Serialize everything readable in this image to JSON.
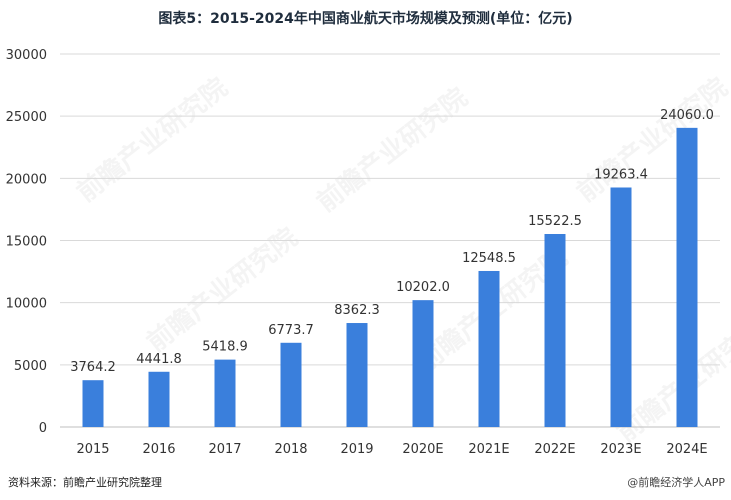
{
  "title": "图表5：2015-2024年中国商业航天市场规模及预测(单位：亿元)",
  "source": "资料来源：前瞻产业研究院整理",
  "badge": "@前瞻经济学人APP",
  "watermark": "前瞻产业研究院",
  "colors": {
    "bar": "#3a7fdc",
    "grid": "#d9d9d9",
    "axis": "#bfbfbf"
  },
  "chart_data": {
    "type": "bar",
    "title": "图表5：2015-2024年中国商业航天市场规模及预测(单位：亿元)",
    "categories": [
      "2015",
      "2016",
      "2017",
      "2018",
      "2019",
      "2020E",
      "2021E",
      "2022E",
      "2023E",
      "2024E"
    ],
    "values": [
      3764.2,
      4441.8,
      5418.9,
      6773.7,
      8362.3,
      10202.0,
      12548.5,
      15522.5,
      19263.4,
      24060.0
    ],
    "labels": [
      "3764.2",
      "4441.8",
      "5418.9",
      "6773.7",
      "8362.3",
      "10202.0",
      "12548.5",
      "15522.5",
      "19263.4",
      "24060.0"
    ],
    "ylim": [
      0,
      30000
    ],
    "yticks": [
      "0",
      "5000",
      "10000",
      "15000",
      "20000",
      "25000",
      "30000"
    ],
    "grid": true,
    "legend": "none"
  }
}
